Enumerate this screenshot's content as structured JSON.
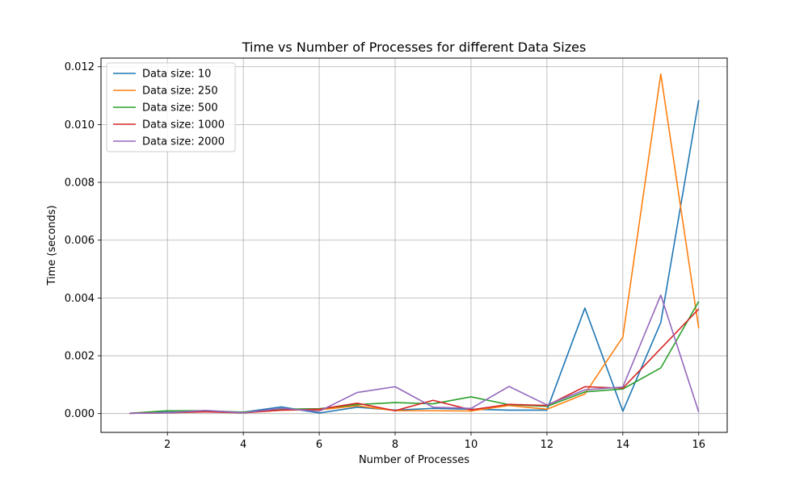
{
  "chart_data": {
    "type": "line",
    "title": "Time vs Number of Processes for different Data Sizes",
    "xlabel": "Number of Processes",
    "ylabel": "Time (seconds)",
    "xlim": [
      0.25,
      16.75
    ],
    "ylim": [
      -0.00065,
      0.0123
    ],
    "xticks": [
      2,
      4,
      6,
      8,
      10,
      12,
      14,
      16
    ],
    "yticks": [
      0.0,
      0.002,
      0.004,
      0.006,
      0.008,
      0.01,
      0.012
    ],
    "ytick_labels": [
      "0.000",
      "0.002",
      "0.004",
      "0.006",
      "0.008",
      "0.010",
      "0.012"
    ],
    "grid": true,
    "legend_position": "top-left",
    "x": [
      1,
      2,
      3,
      4,
      5,
      6,
      7,
      8,
      9,
      10,
      11,
      12,
      13,
      14,
      15,
      16
    ],
    "series": [
      {
        "name": "Data size: 10",
        "color": "#1f77b4",
        "values": [
          1e-05,
          5e-05,
          7e-05,
          5e-05,
          0.00023,
          2e-05,
          0.00022,
          0.00012,
          0.00018,
          0.00015,
          0.00012,
          0.00012,
          0.00365,
          8e-05,
          0.00315,
          0.01085
        ]
      },
      {
        "name": "Data size: 250",
        "color": "#ff7f0e",
        "values": [
          1e-05,
          3e-05,
          8e-05,
          3e-05,
          0.00012,
          0.00013,
          0.00027,
          0.0001,
          0.0001,
          9e-05,
          0.00028,
          0.00015,
          0.00068,
          0.00265,
          0.01175,
          0.00295
        ]
      },
      {
        "name": "Data size: 500",
        "color": "#2ca02c",
        "values": [
          1e-05,
          0.0001,
          0.0001,
          5e-05,
          0.00015,
          0.00017,
          0.00031,
          0.00038,
          0.00034,
          0.00058,
          0.00031,
          0.00025,
          0.00075,
          0.00085,
          0.00158,
          0.00388
        ]
      },
      {
        "name": "Data size: 1000",
        "color": "#d62728",
        "values": [
          1e-05,
          3e-05,
          6e-05,
          3e-05,
          0.00012,
          0.00015,
          0.00036,
          0.0001,
          0.00046,
          0.00013,
          0.00032,
          0.00028,
          0.00093,
          0.00088,
          0.00225,
          0.00362
        ]
      },
      {
        "name": "Data size: 2000",
        "color": "#9467bd",
        "values": [
          1e-05,
          3e-05,
          0.00011,
          3e-05,
          0.00018,
          8e-05,
          0.00073,
          0.00093,
          0.00022,
          0.00018,
          0.00094,
          0.0003,
          0.00082,
          0.00092,
          0.0041,
          5e-05
        ]
      }
    ]
  }
}
